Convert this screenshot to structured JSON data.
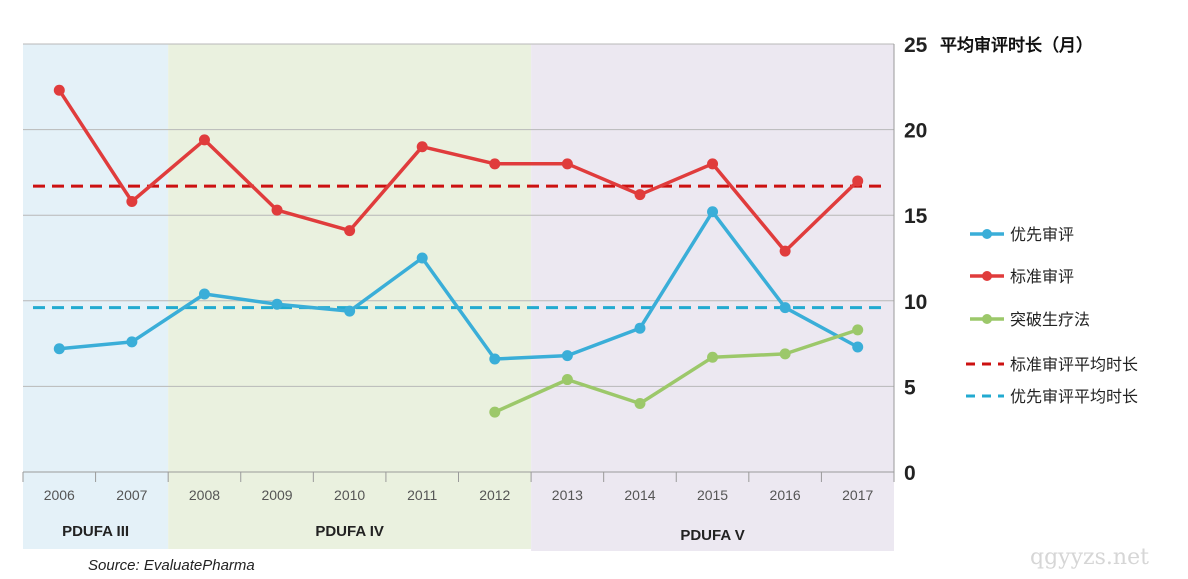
{
  "chart_data": {
    "type": "line",
    "title": "",
    "ylabel": "平均审评时长（月）",
    "xlabel": "",
    "ylim": [
      0,
      25
    ],
    "yticks": [
      0,
      5,
      10,
      15,
      20,
      25
    ],
    "grid": true,
    "legend_position": "right",
    "categories": [
      "2006",
      "2007",
      "2008",
      "2009",
      "2010",
      "2011",
      "2012",
      "2013",
      "2014",
      "2015",
      "2016",
      "2017"
    ],
    "series": [
      {
        "name": "优先审评",
        "color": "#3aaed8",
        "values": [
          7.2,
          7.6,
          10.4,
          9.8,
          9.4,
          12.5,
          6.6,
          6.8,
          8.4,
          15.2,
          9.6,
          7.3
        ]
      },
      {
        "name": "标准审评",
        "color": "#e03c3c",
        "values": [
          22.3,
          15.8,
          19.4,
          15.3,
          14.1,
          19.0,
          18.0,
          18.0,
          16.2,
          18.0,
          12.9,
          17.0
        ]
      },
      {
        "name": "突破生疗法",
        "color": "#9cc86a",
        "values": [
          null,
          null,
          null,
          null,
          null,
          null,
          3.5,
          5.4,
          4.0,
          6.7,
          6.9,
          8.3
        ]
      }
    ],
    "reference_lines": [
      {
        "name": "标准审评平均时长",
        "value": 16.7,
        "color": "#cc1111"
      },
      {
        "name": "优先审评平均时长",
        "value": 9.6,
        "color": "#22aad0"
      }
    ],
    "regions": [
      {
        "label": "PDUFA III",
        "from": "2006",
        "to": "2007",
        "color": "#e4f1f8"
      },
      {
        "label": "PDUFA IV",
        "from": "2008",
        "to": "2012",
        "color": "#eaf1df"
      },
      {
        "label": "PDUFA V",
        "from": "2013",
        "to": "2017",
        "color": "#ece8f1"
      }
    ],
    "source": "Source: EvaluatePharma"
  },
  "watermark": "qgyyzs.net"
}
